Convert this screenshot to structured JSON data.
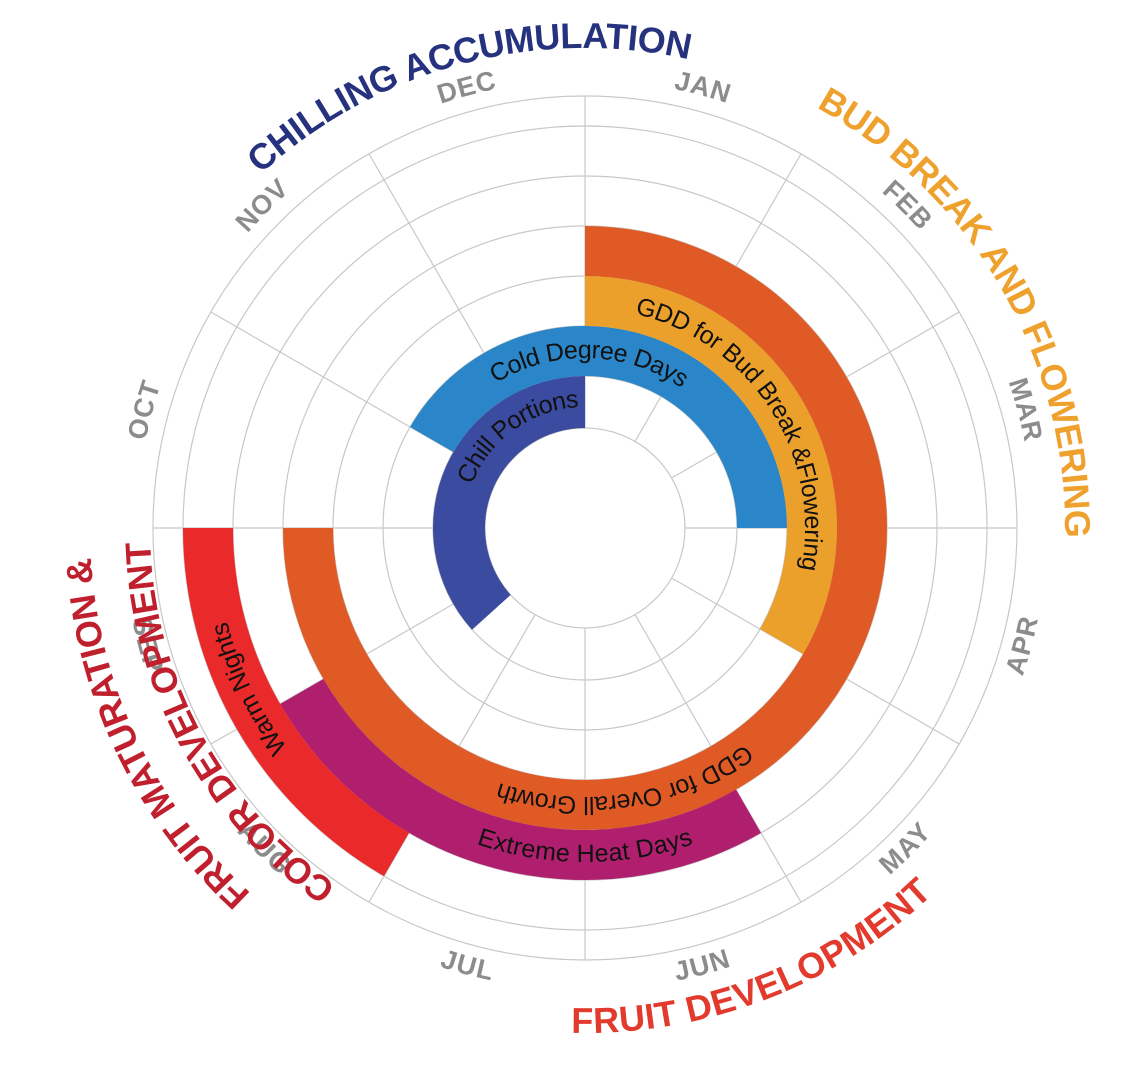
{
  "months": [
    "JAN",
    "FEB",
    "MAR",
    "APR",
    "MAY",
    "JUN",
    "JUL",
    "AUG",
    "SEP",
    "OCT",
    "NOV",
    "DEC"
  ],
  "rings": [
    {
      "id": "chill-portions",
      "label": "Chill Portions",
      "color": "#3b4ba0",
      "start_month": 7.6,
      "end_month": 12.0,
      "ring": 1
    },
    {
      "id": "cold-degree-days",
      "label": "Cold Degree Days",
      "color": "#2a86c8",
      "start_month": 10.0,
      "end_month": 15.0,
      "ring": 2
    },
    {
      "id": "gdd-bud-break",
      "label": "GDD for Bud Break &Flowering",
      "color": "#eba02b",
      "start_month": 12.0,
      "end_month": 16.0,
      "ring": 3
    },
    {
      "id": "gdd-overall-growth",
      "label": "GDD for Overall Growth",
      "color": "#e05a26",
      "start_month": 12.0,
      "end_month": 21.0,
      "ring": 4
    },
    {
      "id": "extreme-heat-days",
      "label": "Extreme Heat Days",
      "color": "#b01e6e",
      "start_month": 17.0,
      "end_month": 20.0,
      "ring": 5
    },
    {
      "id": "warm-nights",
      "label": "Warm Nights",
      "color": "#ea2a2a",
      "start_month": 19.0,
      "end_month": 21.0,
      "ring": 6
    }
  ],
  "phases": [
    {
      "id": "chilling-accumulation",
      "label": "CHILLING ACCUMULATION",
      "color": "#27327e"
    },
    {
      "id": "bud-break-flowering",
      "label": "BUD BREAK AND FLOWERING",
      "color": "#efa12e"
    },
    {
      "id": "fruit-development",
      "label": "FRUIT DEVELOPMENT",
      "color": "#e23b2e"
    },
    {
      "id": "fruit-maturation-1",
      "label": "FRUIT MATURATION &",
      "color": "#c0202e"
    },
    {
      "id": "fruit-maturation-2",
      "label": "COLOR DEVELOPMENT",
      "color": "#c0202e"
    }
  ]
}
